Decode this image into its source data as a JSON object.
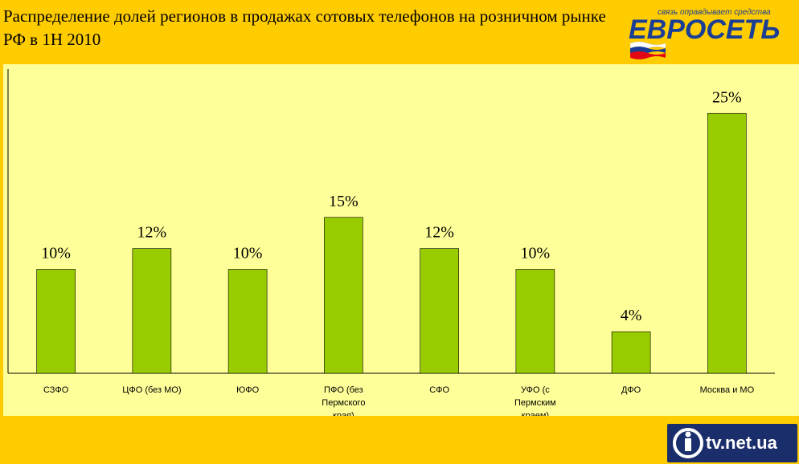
{
  "header": {
    "title": "Распределение долей регионов в продажах сотовых телефонов на розничном рынке РФ в 1H 2010"
  },
  "logo": {
    "slogan": "связь оправдывает средства",
    "wordmark": "ЕВРОСЕТЬ",
    "flag_colors": [
      "#FFFFFF",
      "#1A3E95",
      "#E30613"
    ]
  },
  "watermark": {
    "text": "tv.net.ua"
  },
  "colors": {
    "background": "#FFCC00",
    "plot_area": "#FFFF99",
    "bar": "#99CC00",
    "bar_border": "#000000"
  },
  "chart_data": {
    "type": "bar",
    "title": "Распределение долей регионов в продажах сотовых телефонов на розничном рынке РФ в 1H 2010",
    "categories": [
      "СЗФО",
      "ЦФО (без МО)",
      "ЮФО",
      "ПФО (без Пермского края)",
      "СФО",
      "УФО (с Пермским краем)",
      "ДФО",
      "Москва и МО"
    ],
    "values": [
      10,
      12,
      10,
      15,
      12,
      10,
      4,
      25
    ],
    "data_labels": [
      "10%",
      "12%",
      "10%",
      "15%",
      "12%",
      "10%",
      "4%",
      "25%"
    ],
    "xlabel": "",
    "ylabel": "",
    "ylim": [
      0,
      30
    ],
    "grid": false,
    "legend": "none"
  }
}
